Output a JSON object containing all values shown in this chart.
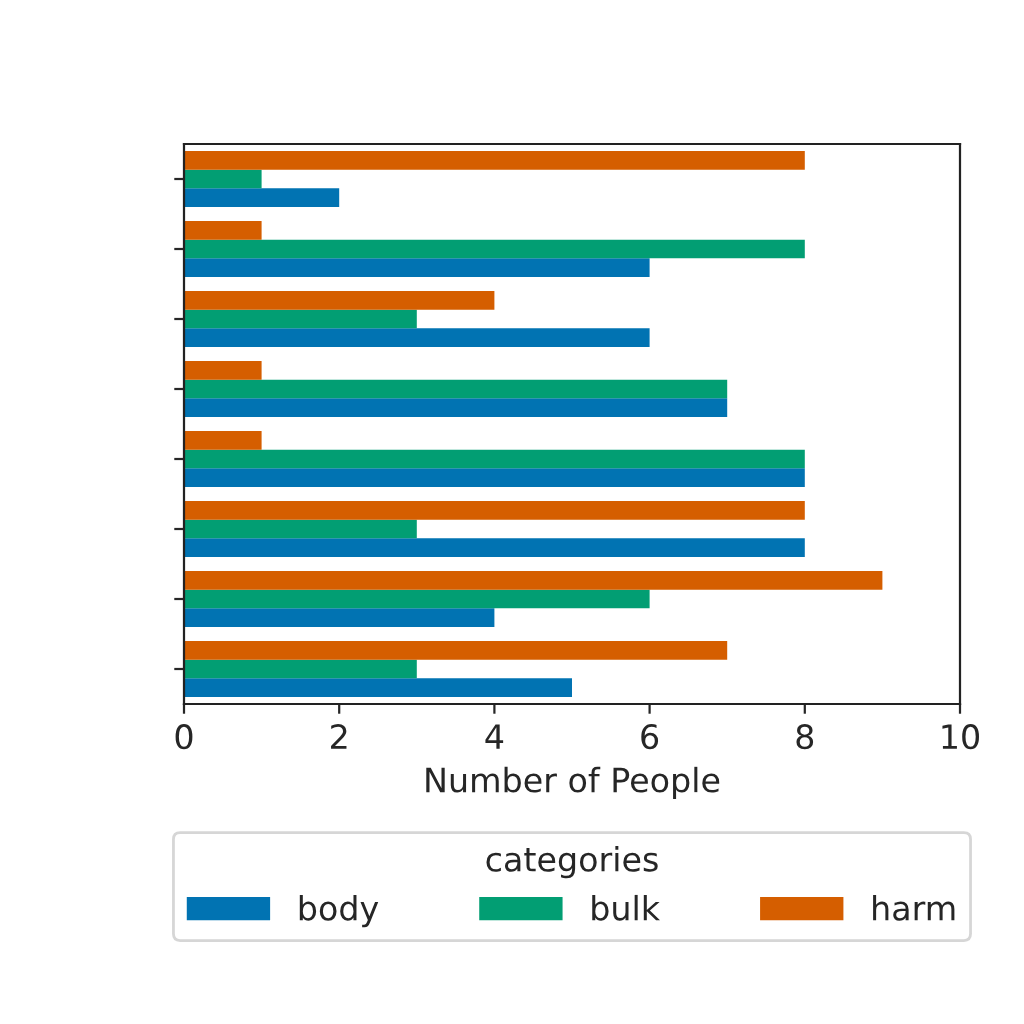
{
  "chart_data": {
    "type": "bar",
    "orientation": "horizontal",
    "xlabel": "Number of People",
    "legend_title": "categories",
    "legend": "bottom",
    "tick_labels": "x",
    "categories": [
      null,
      null,
      null,
      null,
      null,
      null,
      null,
      null
    ],
    "series": [
      {
        "name": "body",
        "color": "#0173b2",
        "values": [
          2,
          6,
          6,
          7,
          8,
          8,
          4,
          5
        ]
      },
      {
        "name": "bulk",
        "color": "#029e73",
        "values": [
          1,
          8,
          3,
          7,
          8,
          3,
          6,
          3
        ]
      },
      {
        "name": "harm",
        "color": "#d55e00",
        "values": [
          8,
          1,
          4,
          1,
          1,
          8,
          9,
          7
        ]
      }
    ],
    "xlim": [
      0,
      10
    ],
    "xticks": [
      0,
      2,
      4,
      6,
      8,
      10
    ]
  }
}
